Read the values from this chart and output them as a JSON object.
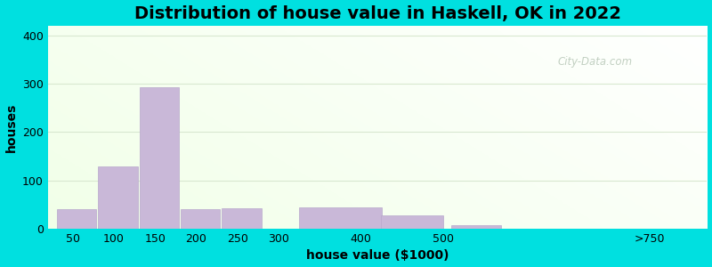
{
  "title": "Distribution of house value in Haskell, OK in 2022",
  "xlabel": "house value ($1000)",
  "ylabel": "houses",
  "bar_centers": [
    50,
    100,
    150,
    200,
    250,
    350,
    425,
    500,
    650
  ],
  "bar_widths": [
    40,
    40,
    40,
    40,
    40,
    80,
    70,
    60,
    150
  ],
  "bar_values": [
    40,
    128,
    293,
    40,
    42,
    45,
    28,
    8,
    0
  ],
  "xtick_positions": [
    50,
    100,
    150,
    200,
    250,
    300,
    400,
    500,
    750
  ],
  "xtick_labels": [
    "50",
    "100",
    "150",
    "200",
    "250",
    "300",
    "400",
    "500",
    ">750"
  ],
  "bar_color": "#c9b8d8",
  "bar_edgecolor": "#b8a8cc",
  "ylim": [
    0,
    420
  ],
  "xlim": [
    20,
    820
  ],
  "yticks": [
    0,
    100,
    200,
    300,
    400
  ],
  "background_outer": "#00e0e0",
  "grid_color": "#e0e8d8",
  "title_fontsize": 14,
  "axis_label_fontsize": 10,
  "tick_fontsize": 9,
  "watermark_text": "City-Data.com"
}
